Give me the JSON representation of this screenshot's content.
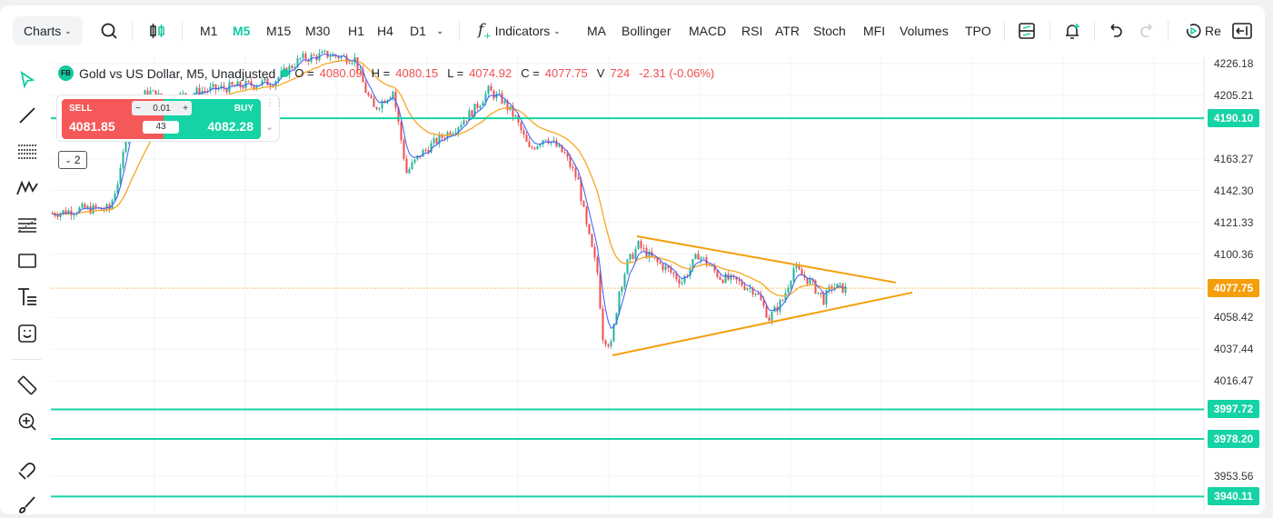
{
  "toolbar": {
    "charts": "Charts",
    "timeframes": [
      "M1",
      "M5",
      "M15",
      "M30",
      "H1",
      "H4",
      "D1"
    ],
    "active_timeframe": "M5",
    "indicators": "Indicators",
    "studies": [
      "MA",
      "Bollinger",
      "MACD",
      "RSI",
      "ATR",
      "Stoch",
      "MFI",
      "Volumes",
      "TPO"
    ],
    "replay": "Re"
  },
  "legend": {
    "badge": "FB",
    "title": "Gold vs US Dollar, M5, Unadjusted",
    "o_label": "O =",
    "o": "4080.09",
    "h_label": "H =",
    "h": "4080.15",
    "l_label": "L =",
    "l": "4074.92",
    "c_label": "C =",
    "c": "4077.75",
    "v_label": "V",
    "v": "724",
    "change": "-2.31 (-0.06%)"
  },
  "trade": {
    "sell_label": "SELL",
    "sell_price": "4081.85",
    "buy_label": "BUY",
    "buy_price": "4082.28",
    "qty": "0.01",
    "minus": "−",
    "plus": "+",
    "lots": "43"
  },
  "indicator_count": "2",
  "colors": {
    "accent": "#12c9a0",
    "up": "#22b39a",
    "down": "#f04e4e",
    "ma_slow": "#f5a623",
    "ma_fast": "#3d5afe",
    "trend": "#f59e0b",
    "last": "#f59e0b"
  },
  "chart_data": {
    "type": "candlestick",
    "symbol": "XAUUSD",
    "timeframe": "M5",
    "ylim": [
      3940,
      4230
    ],
    "y_ticks": [
      "4226.18",
      "4205.21",
      "4163.27",
      "4142.30",
      "4121.33",
      "4100.36",
      "4058.42",
      "4037.44",
      "4016.47",
      "3953.56"
    ],
    "close_path": [
      [
        0,
        4127.1
      ],
      [
        11,
        4130.1
      ],
      [
        21,
        4130.1
      ],
      [
        25,
        4154.1
      ],
      [
        28,
        4190.1
      ],
      [
        35,
        4208.2
      ],
      [
        41,
        4202.2
      ],
      [
        55,
        4208.2
      ],
      [
        68,
        4211.2
      ],
      [
        81,
        4214.2
      ],
      [
        91,
        4229.2
      ],
      [
        101,
        4232.2
      ],
      [
        111,
        4229.2
      ],
      [
        115,
        4208.2
      ],
      [
        118,
        4196.2
      ],
      [
        125,
        4208.2
      ],
      [
        130,
        4154.1
      ],
      [
        135,
        4166.1
      ],
      [
        141,
        4175.1
      ],
      [
        148,
        4184.1
      ],
      [
        155,
        4196.2
      ],
      [
        160,
        4208.2
      ],
      [
        165,
        4202.2
      ],
      [
        170,
        4190.1
      ],
      [
        175,
        4169.1
      ],
      [
        181,
        4178.1
      ],
      [
        188,
        4166.1
      ],
      [
        193,
        4148.1
      ],
      [
        196,
        4118.1
      ],
      [
        200,
        4088.1
      ],
      [
        202,
        4046.0
      ],
      [
        205,
        4040.0
      ],
      [
        208,
        4076.1
      ],
      [
        211,
        4094.1
      ],
      [
        215,
        4106.1
      ],
      [
        220,
        4097.1
      ],
      [
        225,
        4091.1
      ],
      [
        231,
        4082.1
      ],
      [
        237,
        4100.1
      ],
      [
        245,
        4085.1
      ],
      [
        251,
        4082.1
      ],
      [
        258,
        4076.1
      ],
      [
        263,
        4058.0
      ],
      [
        268,
        4070.1
      ],
      [
        272,
        4091.1
      ],
      [
        278,
        4082.1
      ],
      [
        283,
        4070.1
      ],
      [
        286,
        4079.1
      ],
      [
        291,
        4077.2
      ]
    ],
    "horizontal_lines": [
      "4190.10",
      "3997.72",
      "3978.20",
      "3940.11"
    ],
    "last_price": "4077.75",
    "trendlines": [
      {
        "name": "upper",
        "from": [
          215,
          4112.1
        ],
        "to": [
          310,
          4081.5
        ]
      },
      {
        "name": "lower",
        "from": [
          206,
          4033.4
        ],
        "to": [
          316,
          4074.9
        ]
      }
    ]
  }
}
